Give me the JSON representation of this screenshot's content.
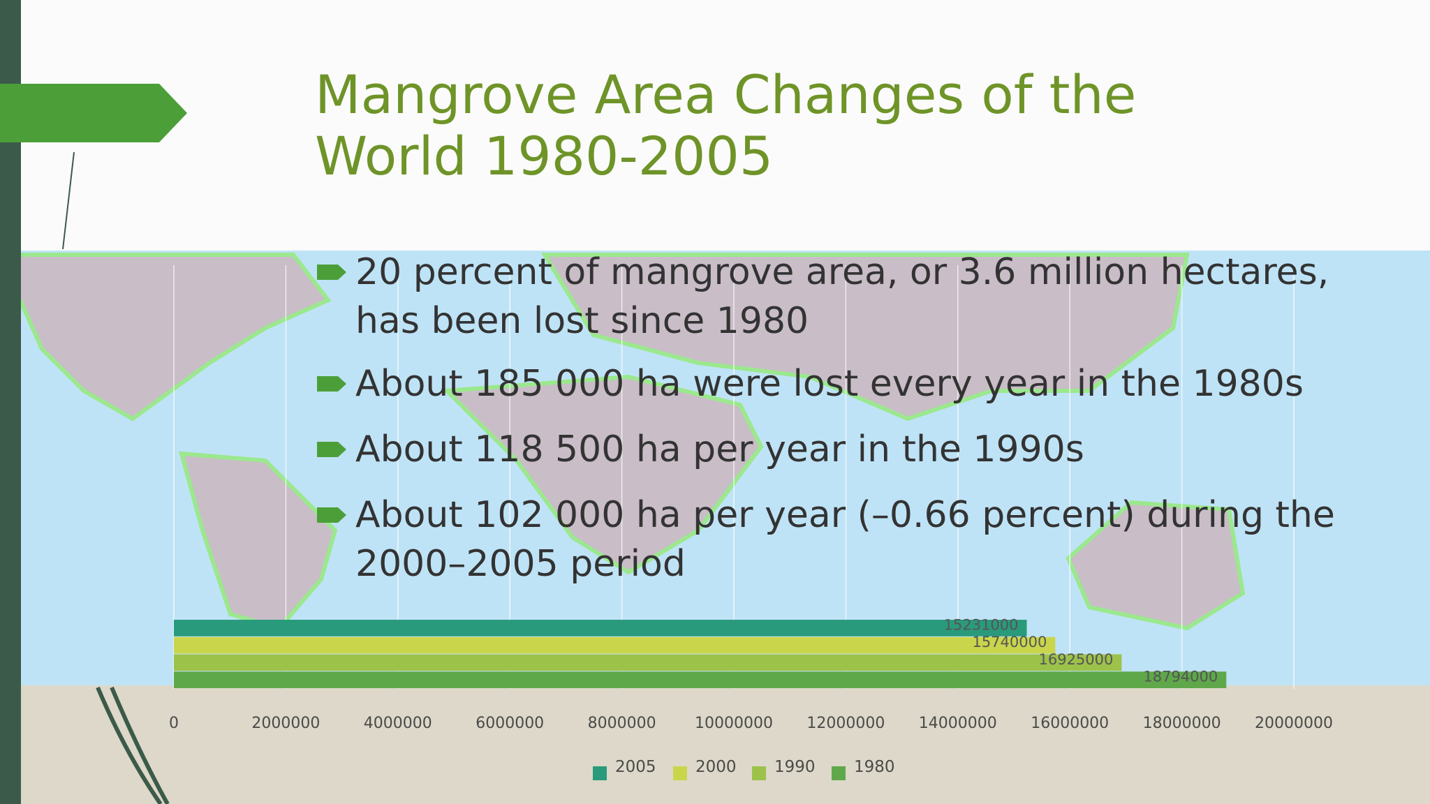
{
  "slide": {
    "title": "Mangrove Area Changes of the World 1980-2005",
    "bullets": [
      "20 percent of mangrove area, or 3.6 million hectares, has been lost since 1980",
      "About 185 000 ha were lost every year in the 1980s",
      "About 118 500 ha per year in the 1990s",
      "About 102 000 ha per year (–0.66 percent) during the 2000–2005 period"
    ]
  },
  "chart_data": {
    "type": "hbar",
    "categories": [
      "2005",
      "2000",
      "1990",
      "1980"
    ],
    "values": [
      15231000,
      15740000,
      16925000,
      18794000
    ],
    "colors": [
      "#2a9a7c",
      "#c9d64c",
      "#9cc24a",
      "#5ea84a"
    ],
    "xlim": [
      0,
      20000000
    ],
    "xticks": [
      0,
      2000000,
      4000000,
      6000000,
      8000000,
      10000000,
      12000000,
      14000000,
      16000000,
      18000000,
      20000000
    ],
    "grid": true,
    "legend": "bottom"
  }
}
